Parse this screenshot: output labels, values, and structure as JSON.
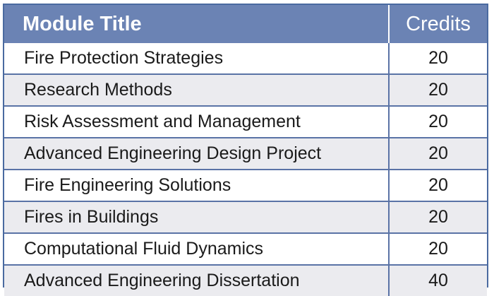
{
  "table": {
    "headers": {
      "title": "Module Title",
      "credits": "Credits"
    },
    "rows": [
      {
        "title": "Fire Protection Strategies",
        "credits": "20"
      },
      {
        "title": "Research Methods",
        "credits": "20"
      },
      {
        "title": "Risk Assessment and Management",
        "credits": "20"
      },
      {
        "title": "Advanced Engineering Design Project",
        "credits": "20"
      },
      {
        "title": "Fire Engineering Solutions",
        "credits": "20"
      },
      {
        "title": "Fires in Buildings",
        "credits": "20"
      },
      {
        "title": "Computational Fluid Dynamics",
        "credits": "20"
      },
      {
        "title": "Advanced Engineering Dissertation",
        "credits": "40"
      }
    ]
  },
  "colors": {
    "header_background": "#6b83b4",
    "border": "#4a6aa0",
    "stripe": "#ebebef"
  }
}
